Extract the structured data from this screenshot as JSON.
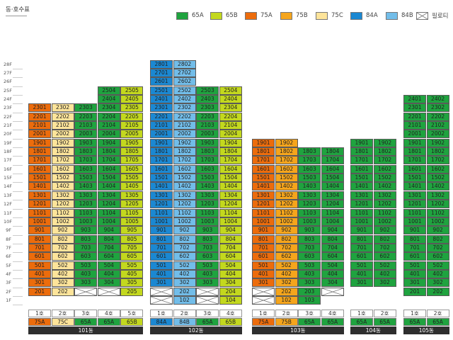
{
  "title": "동·호수표",
  "colors": {
    "65A": "#1fa33f",
    "65B": "#c3d81e",
    "75A": "#ec6c0c",
    "75B": "#f5a51c",
    "75C": "#fde49a",
    "84A": "#1b88d2",
    "84B": "#72bde9",
    "piloti": "#ffffff"
  },
  "legend": [
    {
      "type": "65A",
      "label": "65A"
    },
    {
      "type": "65B",
      "label": "65B"
    },
    {
      "type": "75A",
      "label": "75A"
    },
    {
      "type": "75B",
      "label": "75B"
    },
    {
      "type": "75C",
      "label": "75C"
    },
    {
      "type": "84A",
      "label": "84A"
    },
    {
      "type": "84B",
      "label": "84B"
    },
    {
      "type": "piloti",
      "label": "필로티"
    }
  ],
  "floors": [
    "28F",
    "27F",
    "26F",
    "25F",
    "24F",
    "23F",
    "22F",
    "21F",
    "20F",
    "19F",
    "18F",
    "17F",
    "16F",
    "15F",
    "14F",
    "13F",
    "12F",
    "11F",
    "10F",
    "9F",
    "8F",
    "7F",
    "6F",
    "5F",
    "4F",
    "3F",
    "2F",
    "1F"
  ],
  "buildings": [
    {
      "name": "101동",
      "lines": [
        {
          "line": "1호",
          "type": "75A",
          "top": 23,
          "first": 2,
          "piloti": []
        },
        {
          "line": "2호",
          "type": "75C",
          "top": 23,
          "first": 2,
          "piloti": []
        },
        {
          "line": "3호",
          "type": "65A",
          "top": 23,
          "first": 3,
          "piloti": [
            2
          ]
        },
        {
          "line": "4호",
          "type": "65A",
          "top": 25,
          "first": 3,
          "piloti": [
            2
          ]
        },
        {
          "line": "5호",
          "type": "65B",
          "top": 25,
          "first": 2,
          "piloti": []
        }
      ]
    },
    {
      "name": "102동",
      "lines": [
        {
          "line": "1호",
          "type": "84A",
          "top": 28,
          "first": 3,
          "piloti": [
            1,
            2
          ]
        },
        {
          "line": "2호",
          "type": "84B",
          "top": 28,
          "first": 1,
          "piloti": []
        },
        {
          "line": "3호",
          "type": "65A",
          "top": 25,
          "first": 3,
          "piloti": [
            1,
            2
          ]
        },
        {
          "line": "4호",
          "type": "65B",
          "top": 25,
          "first": 1,
          "piloti": []
        }
      ]
    },
    {
      "name": "103동",
      "lines": [
        {
          "line": "1호",
          "type": "75A",
          "top": 19,
          "first": 3,
          "piloti": [
            1,
            2
          ]
        },
        {
          "line": "2호",
          "type": "75B",
          "top": 19,
          "first": 1,
          "piloti": []
        },
        {
          "line": "3호",
          "type": "65A",
          "top": 18,
          "first": 1,
          "piloti": []
        },
        {
          "line": "4호",
          "type": "65A",
          "top": 18,
          "first": 3,
          "piloti": [
            2
          ]
        }
      ]
    },
    {
      "name": "104동",
      "lines": [
        {
          "line": "1호",
          "type": "65A",
          "top": 19,
          "first": 3,
          "piloti": []
        },
        {
          "line": "2호",
          "type": "65A",
          "top": 19,
          "first": 3,
          "piloti": []
        }
      ]
    },
    {
      "name": "105동",
      "lines": [
        {
          "line": "1호",
          "type": "65A",
          "top": 24,
          "first": 2,
          "piloti": []
        },
        {
          "line": "2호",
          "type": "65A",
          "top": 24,
          "first": 2,
          "piloti": []
        }
      ]
    }
  ]
}
